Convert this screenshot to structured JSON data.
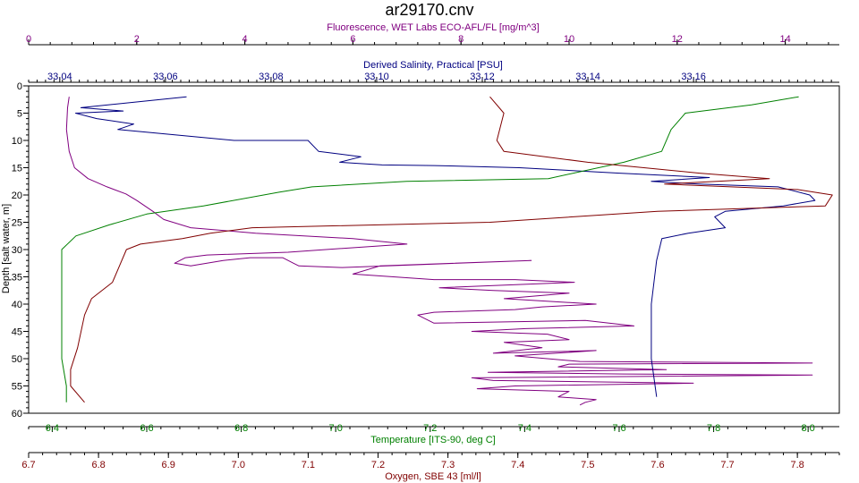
{
  "chart_data": {
    "type": "line",
    "title": "ar29170.cnv",
    "axes": {
      "depth": {
        "label": "Depth [salt water, m]",
        "range": [
          0,
          60
        ],
        "inverted": true,
        "ticks": [
          0,
          5,
          10,
          15,
          20,
          25,
          30,
          35,
          40,
          45,
          50,
          55,
          60
        ],
        "color": "#000000"
      },
      "fluorescence": {
        "label": "Fluorescence, WET Labs ECO-AFL/FL [mg/m^3]",
        "range": [
          0,
          15
        ],
        "ticks": [
          0,
          2,
          4,
          6,
          8,
          10,
          12,
          14
        ],
        "position": "top",
        "color": "#800080"
      },
      "salinity": {
        "label": "Derived Salinity, Practical [PSU]",
        "range": [
          33.0341,
          33.1876
        ],
        "ticks": [
          33.04,
          33.06,
          33.08,
          33.1,
          33.12,
          33.14,
          33.16
        ],
        "position": "top",
        "color": "#000080"
      },
      "temperature": {
        "label": "Temperature [ITS-90, deg C]",
        "range": [
          6.35,
          8.066
        ],
        "ticks": [
          6.4,
          6.6,
          6.8,
          7.0,
          7.2,
          7.4,
          7.6,
          7.8,
          8.0
        ],
        "position": "bottom",
        "color": "#008000"
      },
      "oxygen": {
        "label": "Oxygen, SBE 43 [ml/l]",
        "range": [
          6.7,
          7.86
        ],
        "ticks": [
          6.7,
          6.8,
          6.9,
          7.0,
          7.1,
          7.2,
          7.3,
          7.4,
          7.5,
          7.6,
          7.7,
          7.8
        ],
        "position": "bottom",
        "color": "#800000"
      }
    },
    "grid": false,
    "series": [
      {
        "name": "Fluorescence, WET Labs ECO-AFL/FL [mg/m^3]",
        "axis": "fluorescence",
        "color": "#800080",
        "points": [
          [
            0.75,
            2
          ],
          [
            0.72,
            4
          ],
          [
            0.7,
            8
          ],
          [
            0.75,
            12
          ],
          [
            0.85,
            15
          ],
          [
            1.1,
            17
          ],
          [
            1.45,
            18.5
          ],
          [
            1.8,
            19.8
          ],
          [
            2.0,
            21
          ],
          [
            2.3,
            23
          ],
          [
            2.5,
            24.5
          ],
          [
            3.0,
            26
          ],
          [
            4.2,
            27
          ],
          [
            6.0,
            28
          ],
          [
            7.0,
            29
          ],
          [
            5.5,
            30
          ],
          [
            4.8,
            30.5
          ],
          [
            3.3,
            31
          ],
          [
            2.9,
            31.5
          ],
          [
            2.7,
            32.5
          ],
          [
            3.0,
            33
          ],
          [
            3.6,
            32
          ],
          [
            4.1,
            31.5
          ],
          [
            4.7,
            31.5
          ],
          [
            4.9,
            32.5
          ],
          [
            5.0,
            33
          ],
          [
            5.8,
            33.3
          ],
          [
            9.3,
            32
          ],
          [
            6.5,
            33
          ],
          [
            6.0,
            34.5
          ],
          [
            7.5,
            35.5
          ],
          [
            9.0,
            35.5
          ],
          [
            10.1,
            36
          ],
          [
            7.6,
            37
          ],
          [
            8.6,
            37.5
          ],
          [
            10.0,
            38
          ],
          [
            8.8,
            39
          ],
          [
            10.5,
            40
          ],
          [
            9.5,
            40.5
          ],
          [
            9.0,
            41
          ],
          [
            7.5,
            41.5
          ],
          [
            7.2,
            42
          ],
          [
            7.5,
            43.5
          ],
          [
            10.3,
            43
          ],
          [
            11.2,
            44
          ],
          [
            9.2,
            44.5
          ],
          [
            8.2,
            45
          ],
          [
            9.6,
            45.5
          ],
          [
            10.0,
            46.5
          ],
          [
            8.8,
            47
          ],
          [
            9.5,
            48
          ],
          [
            8.6,
            49
          ],
          [
            10.5,
            48.5
          ],
          [
            9.0,
            49.5
          ],
          [
            10.2,
            50.5
          ],
          [
            14.5,
            50.8
          ],
          [
            10.0,
            51
          ],
          [
            9.8,
            51.5
          ],
          [
            11.8,
            52
          ],
          [
            8.5,
            52.5
          ],
          [
            11.0,
            52.8
          ],
          [
            14.5,
            53
          ],
          [
            8.2,
            53.5
          ],
          [
            8.6,
            54
          ],
          [
            12.3,
            54.5
          ],
          [
            9.0,
            55
          ],
          [
            8.3,
            55.5
          ],
          [
            10.0,
            56
          ],
          [
            9.8,
            57
          ],
          [
            10.5,
            57.5
          ],
          [
            10.3,
            58
          ],
          [
            10.2,
            58.5
          ]
        ]
      },
      {
        "name": "Derived Salinity, Practical [PSU]",
        "axis": "salinity",
        "color": "#000080",
        "points": [
          [
            33.064,
            2
          ],
          [
            33.044,
            4
          ],
          [
            33.052,
            4.6
          ],
          [
            33.043,
            5
          ],
          [
            33.047,
            6
          ],
          [
            33.054,
            7
          ],
          [
            33.051,
            8
          ],
          [
            33.062,
            9
          ],
          [
            33.073,
            10
          ],
          [
            33.087,
            10
          ],
          [
            33.089,
            12
          ],
          [
            33.097,
            13
          ],
          [
            33.093,
            14
          ],
          [
            33.101,
            14.5
          ],
          [
            33.111,
            14.6
          ],
          [
            33.127,
            15
          ],
          [
            33.146,
            16
          ],
          [
            33.163,
            16.8
          ],
          [
            33.152,
            17.5
          ],
          [
            33.161,
            18
          ],
          [
            33.176,
            18.5
          ],
          [
            33.182,
            20
          ],
          [
            33.183,
            21
          ],
          [
            33.177,
            22
          ],
          [
            33.166,
            23
          ],
          [
            33.164,
            24
          ],
          [
            33.166,
            26
          ],
          [
            33.159,
            27
          ],
          [
            33.154,
            28
          ],
          [
            33.153,
            32
          ],
          [
            33.152,
            40
          ],
          [
            33.152,
            50
          ],
          [
            33.153,
            57
          ]
        ]
      },
      {
        "name": "Temperature [ITS-90, deg C]",
        "axis": "temperature",
        "color": "#008000",
        "points": [
          [
            7.98,
            2
          ],
          [
            7.88,
            3.5
          ],
          [
            7.74,
            5
          ],
          [
            7.71,
            8
          ],
          [
            7.69,
            12
          ],
          [
            7.61,
            14
          ],
          [
            7.45,
            17
          ],
          [
            7.15,
            17.5
          ],
          [
            6.95,
            18.5
          ],
          [
            6.88,
            19.5
          ],
          [
            6.72,
            22
          ],
          [
            6.6,
            23.5
          ],
          [
            6.52,
            25.5
          ],
          [
            6.45,
            27.5
          ],
          [
            6.42,
            30
          ],
          [
            6.42,
            40
          ],
          [
            6.42,
            50
          ],
          [
            6.43,
            55
          ],
          [
            6.43,
            58
          ]
        ]
      },
      {
        "name": "Oxygen, SBE 43 [ml/l]",
        "axis": "oxygen",
        "color": "#800000",
        "points": [
          [
            7.36,
            2
          ],
          [
            7.38,
            5
          ],
          [
            7.37,
            10
          ],
          [
            7.38,
            12
          ],
          [
            7.5,
            14
          ],
          [
            7.66,
            16
          ],
          [
            7.76,
            17
          ],
          [
            7.61,
            18
          ],
          [
            7.8,
            19
          ],
          [
            7.85,
            20
          ],
          [
            7.84,
            22
          ],
          [
            7.6,
            23
          ],
          [
            7.36,
            25
          ],
          [
            7.02,
            26
          ],
          [
            6.96,
            27
          ],
          [
            6.92,
            28
          ],
          [
            6.86,
            29
          ],
          [
            6.84,
            30
          ],
          [
            6.83,
            33
          ],
          [
            6.82,
            36
          ],
          [
            6.79,
            39
          ],
          [
            6.78,
            42
          ],
          [
            6.77,
            48
          ],
          [
            6.76,
            52
          ],
          [
            6.76,
            55
          ],
          [
            6.78,
            58
          ]
        ]
      }
    ]
  }
}
